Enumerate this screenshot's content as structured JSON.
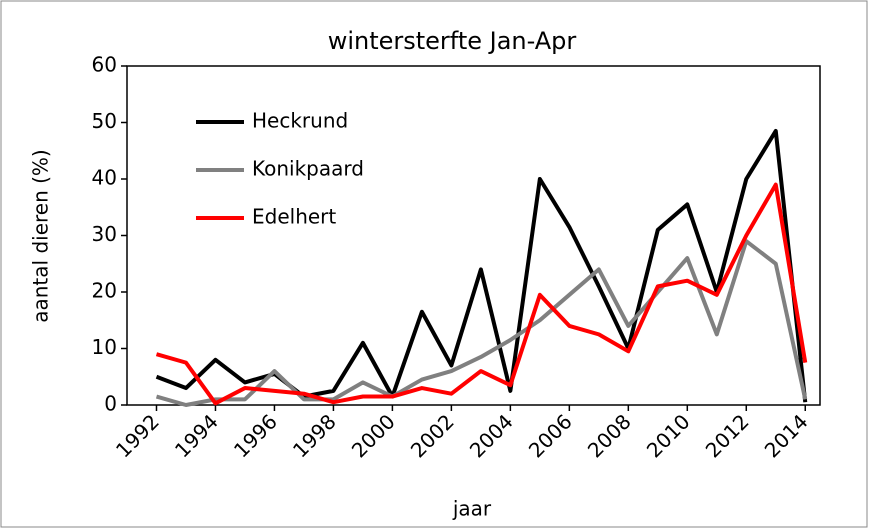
{
  "chart_data": {
    "type": "line",
    "title": "wintersterfte Jan-Apr",
    "x_label": "jaar",
    "y_label": "aantal dieren (%)",
    "x": [
      1992,
      1993,
      1994,
      1995,
      1996,
      1997,
      1998,
      1999,
      2000,
      2001,
      2002,
      2003,
      2004,
      2005,
      2006,
      2007,
      2008,
      2009,
      2010,
      2011,
      2012,
      2013,
      2014
    ],
    "series": [
      {
        "name": "Heckrund",
        "color": "#000000",
        "values": [
          5,
          3,
          8,
          4,
          5.5,
          1.5,
          2.5,
          11,
          1.5,
          16.5,
          7,
          24,
          2.5,
          40,
          31.5,
          21,
          10,
          31,
          35.5,
          20,
          40,
          48.5,
          0.5
        ]
      },
      {
        "name": "Konikpaard",
        "color": "#808080",
        "values": [
          1.5,
          0,
          1,
          1,
          6,
          1,
          1,
          4,
          1.5,
          4.5,
          6,
          8.5,
          11.5,
          15,
          19.5,
          24,
          14,
          20,
          26,
          12.5,
          29,
          25,
          1
        ]
      },
      {
        "name": "Edelhert",
        "color": "#ff0000",
        "values": [
          9,
          7.5,
          0.3,
          3,
          2.5,
          2,
          0.5,
          1.5,
          1.5,
          3,
          2,
          6,
          3.5,
          19.5,
          14,
          12.5,
          9.5,
          21,
          22,
          19.5,
          30,
          39,
          7.5
        ]
      }
    ],
    "xlim": [
      1991,
      2014.5
    ],
    "xticks": [
      1992,
      1994,
      1996,
      1998,
      2000,
      2002,
      2004,
      2006,
      2008,
      2010,
      2012,
      2014
    ],
    "ylim": [
      0,
      60
    ],
    "yticks": [
      0,
      10,
      20,
      30,
      40,
      50,
      60
    ],
    "grid": false,
    "legend": "upper left"
  }
}
